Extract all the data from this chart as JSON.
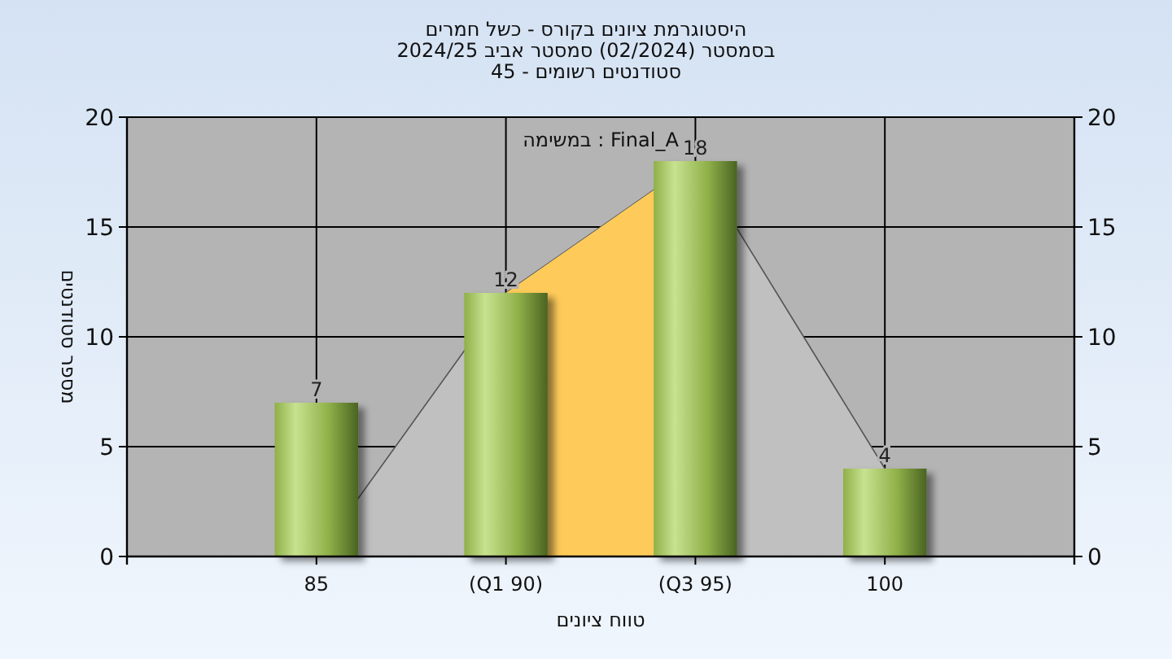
{
  "chart_data": {
    "type": "bar",
    "title": "היסטוגרמת ציונים בקורס - כשל חמרים",
    "subtitle": "בסמסטר  (02/2024)  סמסטר אביב 2024/25\nסטודנטים רשומים - 45",
    "xlabel": "טווח ציונים",
    "ylabel": "מספר סטודנטים",
    "annotations": [
      "במשימה : Final_A"
    ],
    "categories": [
      "85",
      "(Q1 90)",
      "(Q3 95)",
      "100"
    ],
    "series": [
      {
        "type": "area",
        "color": "#c0c0c0",
        "values": [
          0,
          12,
          18,
          4
        ]
      },
      {
        "color": "#8fb048",
        "values": [
          7,
          12,
          18,
          4
        ],
        "value_labels": [
          "7",
          "12",
          "18",
          "4"
        ]
      }
    ],
    "bands": [
      {
        "axis": "x",
        "from": "(Q1 90)",
        "to": "(Q3 95)",
        "color": "#fecb5a"
      }
    ],
    "ylim": [
      0,
      20
    ],
    "yticks": [
      0,
      5,
      10,
      15,
      20
    ],
    "y2lim": [
      0,
      20
    ],
    "y2ticks": [
      0,
      5,
      10,
      15,
      20
    ],
    "grid": true
  }
}
